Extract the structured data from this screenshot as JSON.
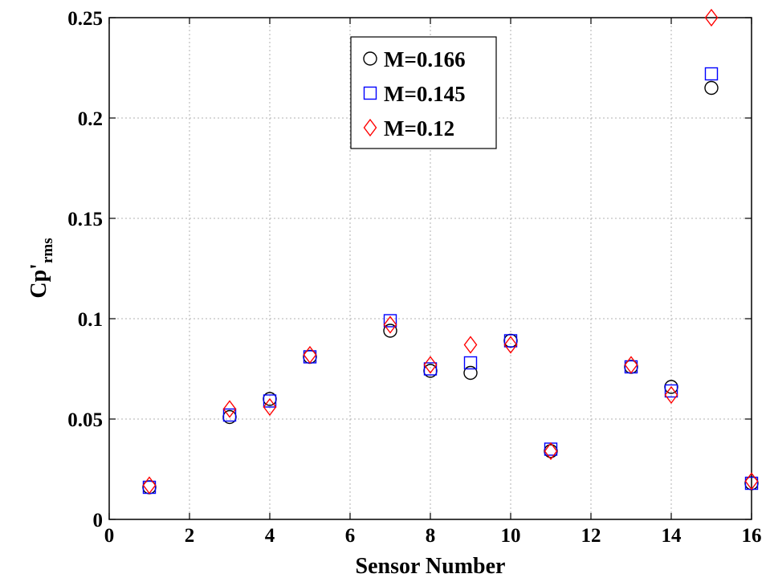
{
  "chart_data": {
    "type": "scatter",
    "xlabel": "Sensor Number",
    "ylabel_main": "Cp'",
    "ylabel_sub": "rms",
    "xlim": [
      0,
      16
    ],
    "ylim": [
      0,
      0.25
    ],
    "x_ticks": [
      "0",
      "2",
      "4",
      "6",
      "8",
      "10",
      "12",
      "14",
      "16"
    ],
    "y_ticks": [
      "0",
      "0.05",
      "0.1",
      "0.15",
      "0.2",
      "0.25"
    ],
    "grid": true,
    "legend_position": "top-center",
    "series": [
      {
        "name": "M=0.166",
        "marker": "circle",
        "color": "#000000",
        "x": [
          1,
          3,
          4,
          5,
          7,
          8,
          9,
          10,
          11,
          13,
          14,
          15,
          16
        ],
        "y": [
          0.016,
          0.051,
          0.06,
          0.081,
          0.094,
          0.074,
          0.073,
          0.089,
          0.034,
          0.076,
          0.066,
          0.215,
          0.018
        ]
      },
      {
        "name": "M=0.145",
        "marker": "square",
        "color": "#0000ff",
        "x": [
          1,
          3,
          4,
          5,
          7,
          8,
          9,
          10,
          11,
          13,
          14,
          15,
          16
        ],
        "y": [
          0.016,
          0.052,
          0.059,
          0.081,
          0.099,
          0.075,
          0.078,
          0.089,
          0.035,
          0.076,
          0.064,
          0.222,
          0.018
        ]
      },
      {
        "name": "M=0.12",
        "marker": "diamond",
        "color": "#ff0000",
        "x": [
          1,
          3,
          4,
          5,
          7,
          8,
          9,
          10,
          11,
          13,
          14,
          15,
          16
        ],
        "y": [
          0.017,
          0.055,
          0.056,
          0.082,
          0.097,
          0.077,
          0.087,
          0.087,
          0.034,
          0.077,
          0.062,
          0.25,
          0.019
        ]
      }
    ]
  }
}
